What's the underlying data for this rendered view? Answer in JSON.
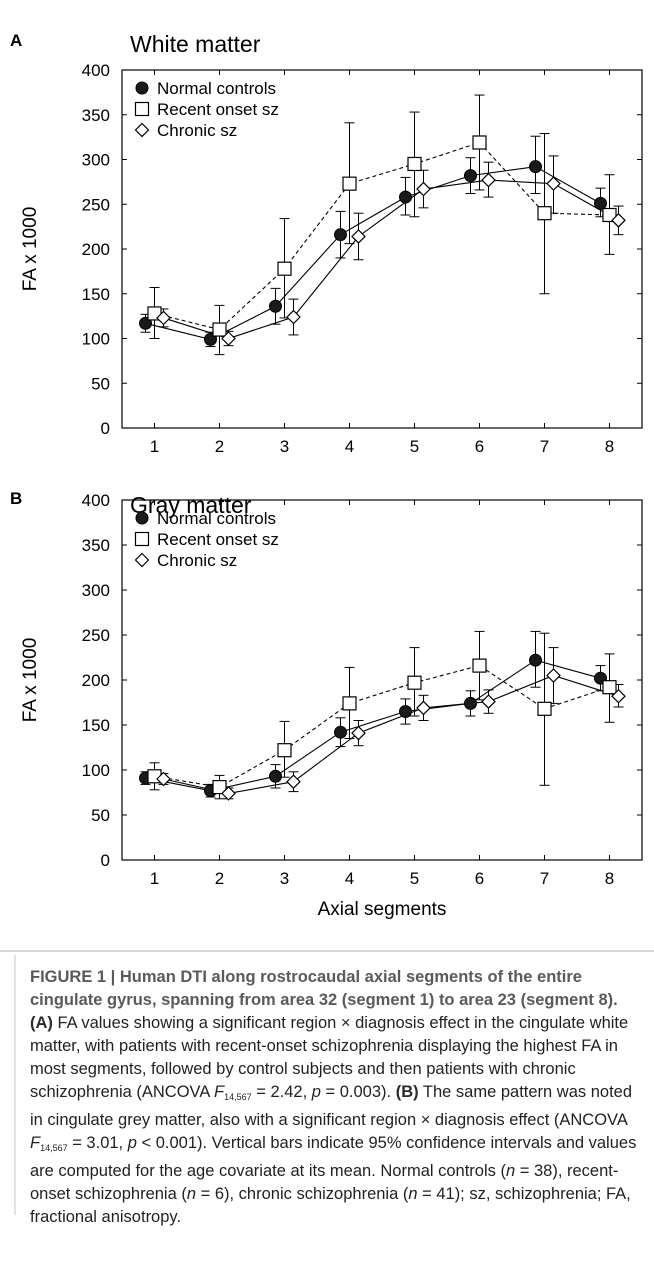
{
  "chart_data": [
    {
      "panel": "A",
      "type": "line",
      "title": "White matter",
      "xlabel": "",
      "ylabel": "FA x 1000",
      "ylim": [
        0,
        400
      ],
      "yticks": [
        0,
        50,
        100,
        150,
        200,
        250,
        300,
        350,
        400
      ],
      "categories": [
        "1",
        "2",
        "3",
        "4",
        "5",
        "6",
        "7",
        "8"
      ],
      "legend_position": "top-left",
      "series": [
        {
          "name": "Normal controls",
          "marker": "circle",
          "line": "solid",
          "values": [
            117,
            99,
            136,
            216,
            258,
            282,
            292,
            251
          ],
          "ci_low": [
            107,
            91,
            116,
            190,
            238,
            262,
            262,
            236
          ],
          "ci_high": [
            127,
            107,
            156,
            242,
            280,
            302,
            326,
            268
          ]
        },
        {
          "name": "Recent onset sz",
          "marker": "square",
          "line": "dashed",
          "values": [
            128,
            110,
            178,
            273,
            295,
            319,
            240,
            238
          ],
          "ci_low": [
            100,
            82,
            123,
            206,
            236,
            266,
            150,
            194
          ],
          "ci_high": [
            157,
            137,
            234,
            341,
            353,
            372,
            329,
            283
          ]
        },
        {
          "name": "Chronic sz",
          "marker": "diamond",
          "line": "solid",
          "values": [
            123,
            100,
            124,
            214,
            267,
            277,
            273,
            232
          ],
          "ci_low": [
            113,
            92,
            104,
            188,
            246,
            258,
            240,
            216
          ],
          "ci_high": [
            133,
            108,
            144,
            240,
            288,
            297,
            304,
            248
          ]
        }
      ]
    },
    {
      "panel": "B",
      "type": "line",
      "title": "Gray matter",
      "xlabel": "Axial segments",
      "ylabel": "FA x 1000",
      "ylim": [
        0,
        400
      ],
      "yticks": [
        0,
        50,
        100,
        150,
        200,
        250,
        300,
        350,
        400
      ],
      "categories": [
        "1",
        "2",
        "3",
        "4",
        "5",
        "6",
        "7",
        "8"
      ],
      "legend_position": "top-left",
      "series": [
        {
          "name": "Normal controls",
          "marker": "circle",
          "line": "solid",
          "values": [
            91,
            77,
            93,
            142,
            165,
            174,
            222,
            202
          ],
          "ci_low": [
            84,
            70,
            80,
            126,
            151,
            160,
            192,
            188
          ],
          "ci_high": [
            98,
            84,
            106,
            158,
            179,
            188,
            254,
            216
          ]
        },
        {
          "name": "Recent onset sz",
          "marker": "square",
          "line": "dashed",
          "values": [
            93,
            81,
            122,
            174,
            197,
            216,
            168,
            192
          ],
          "ci_low": [
            78,
            68,
            92,
            135,
            160,
            178,
            83,
            153
          ],
          "ci_high": [
            108,
            94,
            154,
            214,
            236,
            254,
            252,
            229
          ]
        },
        {
          "name": "Chronic sz",
          "marker": "diamond",
          "line": "solid",
          "values": [
            90,
            74,
            87,
            141,
            169,
            176,
            205,
            182
          ],
          "ci_low": [
            84,
            68,
            76,
            127,
            155,
            163,
            174,
            170
          ],
          "ci_high": [
            96,
            80,
            98,
            155,
            183,
            189,
            236,
            195
          ]
        }
      ]
    }
  ],
  "caption": {
    "title": "FIGURE 1 | Human DTI along rostrocaudal axial segments of the entire cingulate gyrus, spanning from area 32 (segment 1) to area 23 (segment 8).",
    "ref_a": "(A)",
    "part_a1": " FA values showing a significant region × diagnosis effect in the cingulate white matter, with patients with recent-onset schizophrenia displaying the highest FA in most segments, followed by control subjects and then patients with chronic schizophrenia (ANCOVA ",
    "f_letter": "F",
    "f_sub": "14,567",
    "part_a2": " = 2.42, ",
    "p_letter": "p",
    "part_a3": " = 0.003). ",
    "ref_b": "(B)",
    "part_b1": " The same pattern was noted in cingulate grey matter, also with a significant region × diagnosis effect (ANCOVA ",
    "part_b2": " = 3.01, ",
    "part_b3": " < 0.001). Vertical bars indicate 95% confidence intervals and values are computed for the age covariate at its mean. Normal controls (",
    "n_letter": "n",
    "part_b4": " = 38), recent-onset schizophrenia (",
    "part_b5": " = 6), chronic schizophrenia (",
    "part_b6": " = 41); sz, schizophrenia; FA, fractional anisotropy."
  }
}
